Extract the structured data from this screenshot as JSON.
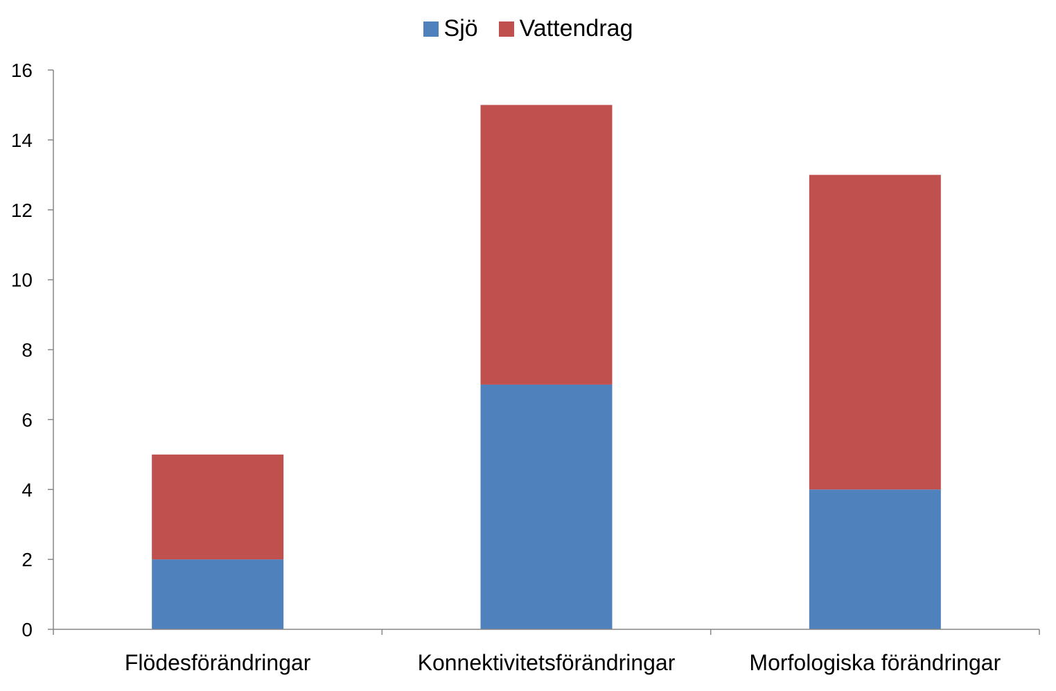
{
  "chart_data": {
    "type": "bar",
    "stacked": true,
    "categories": [
      "Flödesförändringar",
      "Konnektivitetsförändringar",
      "Morfologiska förändringar"
    ],
    "series": [
      {
        "name": "Sjö",
        "values": [
          2,
          7,
          4
        ],
        "color": "#4F81BD"
      },
      {
        "name": "Vattendrag",
        "values": [
          3,
          8,
          9
        ],
        "color": "#C0504D"
      }
    ],
    "ylim": [
      0,
      16
    ],
    "yticks": [
      0,
      2,
      4,
      6,
      8,
      10,
      12,
      14,
      16
    ],
    "grid": false,
    "legend_position": "top"
  }
}
